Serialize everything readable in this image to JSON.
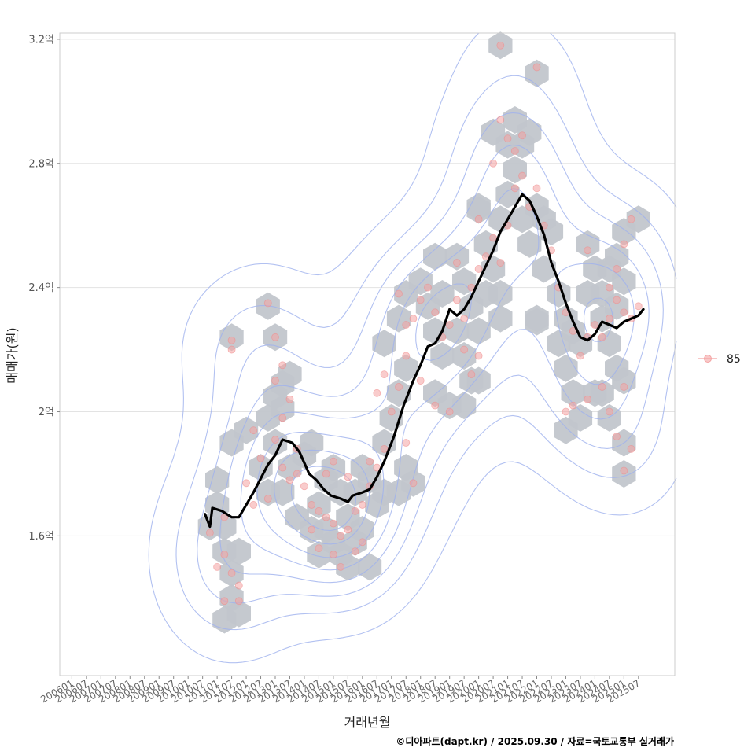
{
  "chart_data": {
    "type": "scatter",
    "title": "",
    "xlabel": "거래년월",
    "ylabel": "매매가(원)",
    "caption": "©디아파트(dapt.kr) / 2025.09.30 / 자료=국토교통부 실거래가",
    "legend": {
      "position": "right",
      "entries": [
        {
          "label": "85",
          "color": "#f4a3a3"
        }
      ]
    },
    "grid": true,
    "x_range": [
      "2005-08",
      "2026-10"
    ],
    "y_range": [
      1.15,
      3.22
    ],
    "y_ticks": [
      {
        "value": 1.6,
        "label": "1.6억"
      },
      {
        "value": 2.0,
        "label": "2억"
      },
      {
        "value": 2.4,
        "label": "2.4억"
      },
      {
        "value": 2.8,
        "label": "2.8억"
      },
      {
        "value": 3.2,
        "label": "3.2억"
      }
    ],
    "x_ticks": [
      "200601",
      "200607",
      "200701",
      "200707",
      "200801",
      "200807",
      "200901",
      "200907",
      "201001",
      "201007",
      "201101",
      "201107",
      "201201",
      "201207",
      "201301",
      "201307",
      "201401",
      "201407",
      "201501",
      "201507",
      "201601",
      "201607",
      "201701",
      "201707",
      "201801",
      "201807",
      "201901",
      "201907",
      "202001",
      "202007",
      "202101",
      "202107",
      "202201",
      "202207",
      "202301",
      "202307",
      "202401",
      "202407",
      "202501",
      "202507"
    ],
    "series": [
      {
        "name": "",
        "kind": "moving-average-line",
        "color": "#000000",
        "points": [
          [
            "2010-08",
            1.67
          ],
          [
            "2010-10",
            1.63
          ],
          [
            "2010-11",
            1.69
          ],
          [
            "2011-03",
            1.68
          ],
          [
            "2011-07",
            1.66
          ],
          [
            "2011-10",
            1.66
          ],
          [
            "2012-01",
            1.7
          ],
          [
            "2012-04",
            1.74
          ],
          [
            "2012-08",
            1.8
          ],
          [
            "2012-10",
            1.83
          ],
          [
            "2013-01",
            1.86
          ],
          [
            "2013-04",
            1.91
          ],
          [
            "2013-08",
            1.9
          ],
          [
            "2013-11",
            1.87
          ],
          [
            "2014-03",
            1.8
          ],
          [
            "2014-06",
            1.78
          ],
          [
            "2014-09",
            1.75
          ],
          [
            "2014-12",
            1.73
          ],
          [
            "2015-04",
            1.72
          ],
          [
            "2015-07",
            1.71
          ],
          [
            "2015-09",
            1.73
          ],
          [
            "2016-01",
            1.74
          ],
          [
            "2016-04",
            1.75
          ],
          [
            "2016-07",
            1.79
          ],
          [
            "2016-10",
            1.84
          ],
          [
            "2017-02",
            1.92
          ],
          [
            "2017-06",
            2.02
          ],
          [
            "2017-10",
            2.1
          ],
          [
            "2018-01",
            2.15
          ],
          [
            "2018-04",
            2.21
          ],
          [
            "2018-07",
            2.22
          ],
          [
            "2018-10",
            2.26
          ],
          [
            "2019-01",
            2.33
          ],
          [
            "2019-04",
            2.31
          ],
          [
            "2019-07",
            2.33
          ],
          [
            "2019-10",
            2.37
          ],
          [
            "2020-01",
            2.42
          ],
          [
            "2020-04",
            2.47
          ],
          [
            "2020-07",
            2.52
          ],
          [
            "2020-10",
            2.58
          ],
          [
            "2021-01",
            2.62
          ],
          [
            "2021-04",
            2.66
          ],
          [
            "2021-07",
            2.7
          ],
          [
            "2021-10",
            2.68
          ],
          [
            "2022-01",
            2.63
          ],
          [
            "2022-04",
            2.57
          ],
          [
            "2022-07",
            2.48
          ],
          [
            "2022-10",
            2.42
          ],
          [
            "2023-01",
            2.35
          ],
          [
            "2023-04",
            2.29
          ],
          [
            "2023-07",
            2.24
          ],
          [
            "2023-10",
            2.23
          ],
          [
            "2024-01",
            2.25
          ],
          [
            "2024-04",
            2.29
          ],
          [
            "2024-07",
            2.28
          ],
          [
            "2024-10",
            2.27
          ],
          [
            "2025-01",
            2.29
          ],
          [
            "2025-04",
            2.3
          ],
          [
            "2025-07",
            2.31
          ],
          [
            "2025-09",
            2.33
          ]
        ]
      }
    ],
    "hexbin_density_cells": [
      [
        "2011-01",
        1.78
      ],
      [
        "2011-01",
        1.7
      ],
      [
        "2010-10",
        1.63
      ],
      [
        "2011-04",
        1.55
      ],
      [
        "2011-07",
        1.48
      ],
      [
        "2011-07",
        1.4
      ],
      [
        "2011-04",
        1.33
      ],
      [
        "2011-10",
        1.35
      ],
      [
        "2011-10",
        1.55
      ],
      [
        "2011-04",
        1.63
      ],
      [
        "2011-07",
        1.9
      ],
      [
        "2012-01",
        1.94
      ],
      [
        "2011-07",
        2.24
      ],
      [
        "2012-10",
        2.34
      ],
      [
        "2013-01",
        2.24
      ],
      [
        "2013-01",
        2.05
      ],
      [
        "2013-04",
        2.09
      ],
      [
        "2013-07",
        2.12
      ],
      [
        "2012-10",
        1.98
      ],
      [
        "2013-04",
        2.01
      ],
      [
        "2013-01",
        1.9
      ],
      [
        "2012-07",
        1.82
      ],
      [
        "2012-10",
        1.74
      ],
      [
        "2013-04",
        1.74
      ],
      [
        "2013-07",
        1.82
      ],
      [
        "2014-01",
        1.86
      ],
      [
        "2014-04",
        1.9
      ],
      [
        "2013-10",
        1.66
      ],
      [
        "2014-04",
        1.62
      ],
      [
        "2014-07",
        1.7
      ],
      [
        "2014-10",
        1.78
      ],
      [
        "2015-01",
        1.82
      ],
      [
        "2015-04",
        1.74
      ],
      [
        "2015-07",
        1.66
      ],
      [
        "2015-10",
        1.74
      ],
      [
        "2016-01",
        1.82
      ],
      [
        "2016-04",
        1.78
      ],
      [
        "2016-07",
        1.7
      ],
      [
        "2016-10",
        1.74
      ],
      [
        "2015-01",
        1.58
      ],
      [
        "2014-07",
        1.54
      ],
      [
        "2014-10",
        1.62
      ],
      [
        "2015-04",
        1.54
      ],
      [
        "2015-10",
        1.58
      ],
      [
        "2016-04",
        1.5
      ],
      [
        "2015-07",
        1.5
      ],
      [
        "2016-01",
        1.62
      ],
      [
        "2016-10",
        1.9
      ],
      [
        "2017-01",
        1.98
      ],
      [
        "2017-04",
        2.06
      ],
      [
        "2017-07",
        2.14
      ],
      [
        "2016-10",
        2.22
      ],
      [
        "2017-04",
        2.3
      ],
      [
        "2017-07",
        1.82
      ],
      [
        "2017-04",
        1.74
      ],
      [
        "2017-07",
        2.38
      ],
      [
        "2018-01",
        2.42
      ],
      [
        "2018-04",
        2.34
      ],
      [
        "2018-07",
        2.26
      ],
      [
        "2018-10",
        2.18
      ],
      [
        "2018-07",
        2.06
      ],
      [
        "2019-01",
        2.02
      ],
      [
        "2018-10",
        2.38
      ],
      [
        "2018-07",
        2.5
      ],
      [
        "2019-04",
        2.5
      ],
      [
        "2019-07",
        2.42
      ],
      [
        "2019-10",
        2.34
      ],
      [
        "2020-01",
        2.26
      ],
      [
        "2019-07",
        2.18
      ],
      [
        "2020-01",
        2.1
      ],
      [
        "2019-07",
        2.02
      ],
      [
        "2019-10",
        2.1
      ],
      [
        "2019-04",
        2.26
      ],
      [
        "2020-04",
        2.38
      ],
      [
        "2020-04",
        2.54
      ],
      [
        "2020-07",
        2.46
      ],
      [
        "2020-10",
        2.38
      ],
      [
        "2020-10",
        2.3
      ],
      [
        "2020-01",
        2.66
      ],
      [
        "2020-10",
        2.62
      ],
      [
        "2021-01",
        2.7
      ],
      [
        "2021-04",
        2.78
      ],
      [
        "2021-07",
        2.86
      ],
      [
        "2021-01",
        2.86
      ],
      [
        "2020-07",
        2.9
      ],
      [
        "2021-04",
        2.94
      ],
      [
        "2021-10",
        2.9
      ],
      [
        "2021-07",
        2.62
      ],
      [
        "2022-01",
        2.66
      ],
      [
        "2021-10",
        2.54
      ],
      [
        "2022-04",
        2.62
      ],
      [
        "2022-07",
        2.58
      ],
      [
        "2022-04",
        2.46
      ],
      [
        "2022-01",
        2.3
      ],
      [
        "2022-10",
        2.38
      ],
      [
        "2023-01",
        2.3
      ],
      [
        "2022-10",
        2.22
      ],
      [
        "2023-04",
        2.26
      ],
      [
        "2023-01",
        2.14
      ],
      [
        "2023-07",
        2.22
      ],
      [
        "2023-04",
        2.06
      ],
      [
        "2023-07",
        1.98
      ],
      [
        "2023-01",
        1.94
      ],
      [
        "2023-10",
        2.38
      ],
      [
        "2024-01",
        2.46
      ],
      [
        "2023-10",
        2.54
      ],
      [
        "2024-04",
        2.38
      ],
      [
        "2024-07",
        2.46
      ],
      [
        "2024-04",
        2.3
      ],
      [
        "2024-10",
        2.34
      ],
      [
        "2024-07",
        2.22
      ],
      [
        "2024-10",
        2.14
      ],
      [
        "2024-01",
        2.06
      ],
      [
        "2024-04",
        2.06
      ],
      [
        "2024-07",
        1.98
      ],
      [
        "2025-01",
        2.1
      ],
      [
        "2025-01",
        2.58
      ],
      [
        "2024-10",
        2.5
      ],
      [
        "2025-07",
        2.62
      ],
      [
        "2025-01",
        1.9
      ],
      [
        "2025-01",
        1.8
      ],
      [
        "2020-10",
        3.18
      ],
      [
        "2022-01",
        3.09
      ],
      [
        "2020-01",
        2.65
      ],
      [
        "2017-10",
        1.77
      ],
      [
        "2022-01",
        2.29
      ],
      [
        "2025-01",
        2.42
      ]
    ],
    "scatter_points": [
      [
        "2011-07",
        2.23
      ],
      [
        "2011-07",
        2.2
      ],
      [
        "2012-10",
        2.35
      ],
      [
        "2013-01",
        2.24
      ],
      [
        "2013-04",
        2.15
      ],
      [
        "2013-01",
        2.1
      ],
      [
        "2013-07",
        2.04
      ],
      [
        "2013-10",
        1.88
      ],
      [
        "2011-04",
        1.54
      ],
      [
        "2011-07",
        1.48
      ],
      [
        "2011-10",
        1.44
      ],
      [
        "2011-10",
        1.39
      ],
      [
        "2011-04",
        1.39
      ],
      [
        "2010-10",
        1.61
      ],
      [
        "2011-01",
        1.5
      ],
      [
        "2011-04",
        1.66
      ],
      [
        "2012-01",
        1.77
      ],
      [
        "2012-04",
        1.7
      ],
      [
        "2012-07",
        1.85
      ],
      [
        "2012-10",
        1.72
      ],
      [
        "2013-01",
        1.91
      ],
      [
        "2013-04",
        1.82
      ],
      [
        "2013-07",
        1.78
      ],
      [
        "2013-10",
        1.8
      ],
      [
        "2014-01",
        1.76
      ],
      [
        "2014-04",
        1.7
      ],
      [
        "2014-07",
        1.68
      ],
      [
        "2014-10",
        1.66
      ],
      [
        "2015-01",
        1.64
      ],
      [
        "2015-04",
        1.6
      ],
      [
        "2015-07",
        1.62
      ],
      [
        "2015-10",
        1.68
      ],
      [
        "2016-01",
        1.7
      ],
      [
        "2016-04",
        1.76
      ],
      [
        "2016-07",
        1.82
      ],
      [
        "2016-10",
        1.88
      ],
      [
        "2014-07",
        1.56
      ],
      [
        "2015-01",
        1.54
      ],
      [
        "2015-04",
        1.5
      ],
      [
        "2015-10",
        1.55
      ],
      [
        "2016-01",
        1.58
      ],
      [
        "2014-10",
        1.8
      ],
      [
        "2015-01",
        1.84
      ],
      [
        "2015-07",
        1.79
      ],
      [
        "2016-04",
        1.84
      ],
      [
        "2014-04",
        1.62
      ],
      [
        "2017-01",
        2.0
      ],
      [
        "2017-04",
        2.08
      ],
      [
        "2017-07",
        2.18
      ],
      [
        "2017-10",
        2.3
      ],
      [
        "2018-01",
        2.36
      ],
      [
        "2018-04",
        2.4
      ],
      [
        "2017-04",
        2.38
      ],
      [
        "2017-07",
        2.28
      ],
      [
        "2018-07",
        2.32
      ],
      [
        "2018-10",
        2.24
      ],
      [
        "2019-01",
        2.28
      ],
      [
        "2019-04",
        2.36
      ],
      [
        "2019-07",
        2.3
      ],
      [
        "2019-10",
        2.4
      ],
      [
        "2020-01",
        2.46
      ],
      [
        "2020-04",
        2.5
      ],
      [
        "2020-07",
        2.56
      ],
      [
        "2020-10",
        2.48
      ],
      [
        "2021-01",
        2.6
      ],
      [
        "2021-04",
        2.72
      ],
      [
        "2021-07",
        2.76
      ],
      [
        "2021-10",
        2.66
      ],
      [
        "2022-01",
        2.72
      ],
      [
        "2022-04",
        2.6
      ],
      [
        "2022-07",
        2.52
      ],
      [
        "2022-10",
        2.4
      ],
      [
        "2023-01",
        2.32
      ],
      [
        "2023-04",
        2.26
      ],
      [
        "2023-07",
        2.18
      ],
      [
        "2023-10",
        2.24
      ],
      [
        "2024-01",
        2.28
      ],
      [
        "2024-04",
        2.24
      ],
      [
        "2024-07",
        2.3
      ],
      [
        "2024-10",
        2.36
      ],
      [
        "2025-01",
        2.32
      ],
      [
        "2025-04",
        2.3
      ],
      [
        "2025-07",
        2.34
      ],
      [
        "2020-10",
        2.94
      ],
      [
        "2021-01",
        2.88
      ],
      [
        "2021-04",
        2.84
      ],
      [
        "2021-07",
        2.89
      ],
      [
        "2020-07",
        2.8
      ],
      [
        "2022-01",
        3.11
      ],
      [
        "2020-10",
        3.18
      ],
      [
        "2020-01",
        2.62
      ],
      [
        "2018-01",
        2.1
      ],
      [
        "2018-07",
        2.02
      ],
      [
        "2019-01",
        2.0
      ],
      [
        "2019-10",
        2.12
      ],
      [
        "2020-01",
        2.18
      ],
      [
        "2023-01",
        2.0
      ],
      [
        "2023-04",
        2.02
      ],
      [
        "2023-10",
        2.04
      ],
      [
        "2024-04",
        2.08
      ],
      [
        "2024-07",
        2.0
      ],
      [
        "2024-10",
        1.92
      ],
      [
        "2025-01",
        2.08
      ],
      [
        "2025-01",
        1.81
      ],
      [
        "2025-04",
        1.88
      ],
      [
        "2025-04",
        2.62
      ],
      [
        "2025-01",
        2.54
      ],
      [
        "2024-10",
        2.46
      ],
      [
        "2024-07",
        2.4
      ],
      [
        "2023-10",
        2.52
      ],
      [
        "2017-10",
        1.77
      ],
      [
        "2017-07",
        1.9
      ],
      [
        "2012-04",
        1.94
      ],
      [
        "2013-04",
        1.98
      ],
      [
        "2016-07",
        2.06
      ],
      [
        "2016-10",
        2.12
      ],
      [
        "2019-04",
        2.48
      ],
      [
        "2019-07",
        2.2
      ]
    ]
  }
}
